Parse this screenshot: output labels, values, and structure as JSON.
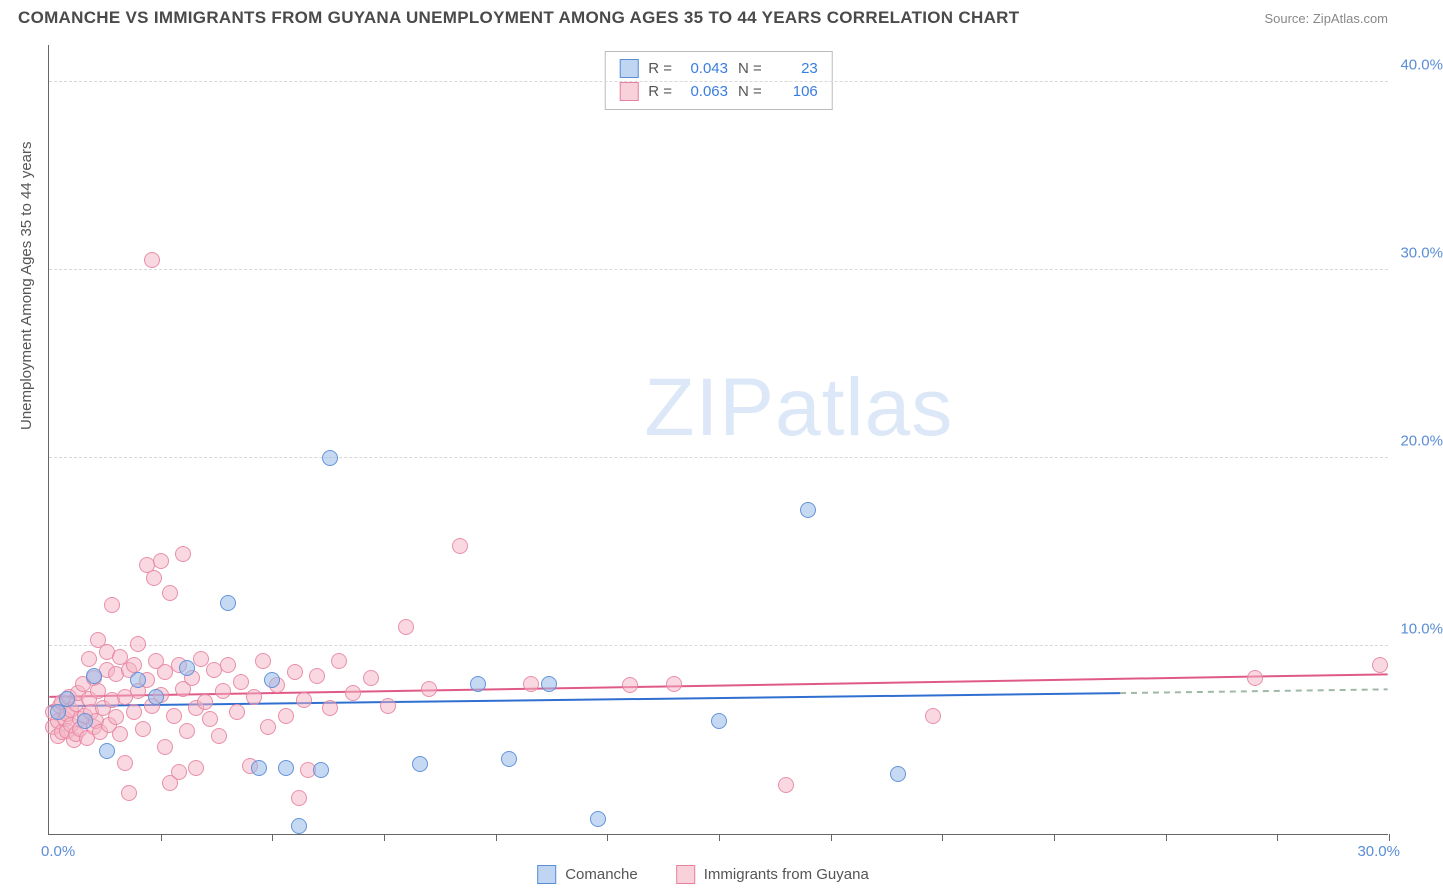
{
  "title": "COMANCHE VS IMMIGRANTS FROM GUYANA UNEMPLOYMENT AMONG AGES 35 TO 44 YEARS CORRELATION CHART",
  "source": "Source: ZipAtlas.com",
  "watermark": "ZIPatlas",
  "ylabel": "Unemployment Among Ages 35 to 44 years",
  "chart": {
    "type": "scatter",
    "background_color": "#ffffff",
    "grid_color": "#d8d8d8",
    "xlim": [
      0,
      30
    ],
    "ylim": [
      0,
      42
    ],
    "xtick_labels": [
      "0.0%",
      "30.0%"
    ],
    "ytick_labels": [
      "10.0%",
      "20.0%",
      "30.0%",
      "40.0%"
    ],
    "ytick_values": [
      10,
      20,
      30,
      40
    ],
    "xtick_marks": [
      2.5,
      5,
      7.5,
      10,
      12.5,
      15,
      17.5,
      20,
      22.5,
      25,
      27.5,
      30
    ],
    "label_color": "#5a8dd6",
    "axis_color": "#666666",
    "marker_size": 16
  },
  "series": {
    "a": {
      "name": "Comanche",
      "color_fill": "rgba(150,185,233,0.55)",
      "color_stroke": "#5a8dd6",
      "r": "0.043",
      "n": "23",
      "trend": {
        "y1": 6.8,
        "y2": 7.5,
        "x2": 24,
        "color": "#2f6fd0",
        "width": 2
      },
      "trend_dash": {
        "x1": 24,
        "y1": 7.5,
        "x2": 30,
        "y2": 7.7,
        "color": "#9fb9a8"
      },
      "points": [
        [
          0.2,
          6.5
        ],
        [
          0.4,
          7.2
        ],
        [
          0.8,
          6.0
        ],
        [
          1.0,
          8.4
        ],
        [
          1.3,
          4.4
        ],
        [
          2.0,
          8.2
        ],
        [
          2.4,
          7.3
        ],
        [
          3.1,
          8.8
        ],
        [
          4.0,
          12.3
        ],
        [
          4.7,
          3.5
        ],
        [
          5.0,
          8.2
        ],
        [
          5.3,
          3.5
        ],
        [
          5.6,
          0.4
        ],
        [
          6.1,
          3.4
        ],
        [
          6.3,
          20.0
        ],
        [
          8.3,
          3.7
        ],
        [
          9.6,
          8.0
        ],
        [
          10.3,
          4.0
        ],
        [
          11.2,
          8.0
        ],
        [
          12.3,
          0.8
        ],
        [
          15.0,
          6.0
        ],
        [
          17.0,
          17.2
        ],
        [
          19.0,
          3.2
        ]
      ]
    },
    "b": {
      "name": "Immigrants from Guyana",
      "color_fill": "rgba(243,178,195,0.5)",
      "color_stroke": "#e682a0",
      "r": "0.063",
      "n": "106",
      "trend": {
        "y1": 7.3,
        "y2": 8.5,
        "x2": 30,
        "color": "#e05a88",
        "width": 2
      },
      "points": [
        [
          0.1,
          5.7
        ],
        [
          0.1,
          6.5
        ],
        [
          0.2,
          5.2
        ],
        [
          0.2,
          6.0
        ],
        [
          0.25,
          6.8
        ],
        [
          0.3,
          5.4
        ],
        [
          0.3,
          7.0
        ],
        [
          0.35,
          6.1
        ],
        [
          0.4,
          5.5
        ],
        [
          0.4,
          6.4
        ],
        [
          0.45,
          7.3
        ],
        [
          0.5,
          5.8
        ],
        [
          0.5,
          6.6
        ],
        [
          0.55,
          5.0
        ],
        [
          0.6,
          6.9
        ],
        [
          0.6,
          5.3
        ],
        [
          0.65,
          7.5
        ],
        [
          0.7,
          6.1
        ],
        [
          0.7,
          5.6
        ],
        [
          0.75,
          8.0
        ],
        [
          0.8,
          6.3
        ],
        [
          0.85,
          5.1
        ],
        [
          0.9,
          7.2
        ],
        [
          0.9,
          9.3
        ],
        [
          0.95,
          6.5
        ],
        [
          1.0,
          5.7
        ],
        [
          1.0,
          8.3
        ],
        [
          1.05,
          6.0
        ],
        [
          1.1,
          7.6
        ],
        [
          1.1,
          10.3
        ],
        [
          1.15,
          5.4
        ],
        [
          1.2,
          6.7
        ],
        [
          1.3,
          8.7
        ],
        [
          1.3,
          9.7
        ],
        [
          1.35,
          5.8
        ],
        [
          1.4,
          7.1
        ],
        [
          1.4,
          12.2
        ],
        [
          1.5,
          6.2
        ],
        [
          1.5,
          8.5
        ],
        [
          1.6,
          9.4
        ],
        [
          1.6,
          5.3
        ],
        [
          1.7,
          7.3
        ],
        [
          1.7,
          3.8
        ],
        [
          1.8,
          8.7
        ],
        [
          1.8,
          2.2
        ],
        [
          1.9,
          6.5
        ],
        [
          1.9,
          9.0
        ],
        [
          2.0,
          10.1
        ],
        [
          2.0,
          7.6
        ],
        [
          2.1,
          5.6
        ],
        [
          2.2,
          8.2
        ],
        [
          2.2,
          14.3
        ],
        [
          2.3,
          6.8
        ],
        [
          2.3,
          30.5
        ],
        [
          2.35,
          13.6
        ],
        [
          2.4,
          9.2
        ],
        [
          2.5,
          7.4
        ],
        [
          2.5,
          14.5
        ],
        [
          2.6,
          4.6
        ],
        [
          2.6,
          8.6
        ],
        [
          2.7,
          12.8
        ],
        [
          2.7,
          2.7
        ],
        [
          2.8,
          6.3
        ],
        [
          2.9,
          9.0
        ],
        [
          2.9,
          3.3
        ],
        [
          3.0,
          7.7
        ],
        [
          3.0,
          14.9
        ],
        [
          3.1,
          5.5
        ],
        [
          3.2,
          8.3
        ],
        [
          3.3,
          6.7
        ],
        [
          3.3,
          3.5
        ],
        [
          3.4,
          9.3
        ],
        [
          3.5,
          7.0
        ],
        [
          3.6,
          6.1
        ],
        [
          3.7,
          8.7
        ],
        [
          3.8,
          5.2
        ],
        [
          3.9,
          7.6
        ],
        [
          4.0,
          9.0
        ],
        [
          4.2,
          6.5
        ],
        [
          4.3,
          8.1
        ],
        [
          4.5,
          3.6
        ],
        [
          4.6,
          7.3
        ],
        [
          4.8,
          9.2
        ],
        [
          4.9,
          5.7
        ],
        [
          5.1,
          7.9
        ],
        [
          5.3,
          6.3
        ],
        [
          5.5,
          8.6
        ],
        [
          5.6,
          1.9
        ],
        [
          5.7,
          7.1
        ],
        [
          5.8,
          3.4
        ],
        [
          6.0,
          8.4
        ],
        [
          6.3,
          6.7
        ],
        [
          6.5,
          9.2
        ],
        [
          6.8,
          7.5
        ],
        [
          7.2,
          8.3
        ],
        [
          7.6,
          6.8
        ],
        [
          8.0,
          11.0
        ],
        [
          8.5,
          7.7
        ],
        [
          9.2,
          15.3
        ],
        [
          10.8,
          8.0
        ],
        [
          13.0,
          7.9
        ],
        [
          14.0,
          8.0
        ],
        [
          16.5,
          2.6
        ],
        [
          19.8,
          6.3
        ],
        [
          27.0,
          8.3
        ],
        [
          29.8,
          9.0
        ]
      ]
    }
  },
  "stats_labels": {
    "r": "R =",
    "n": "N ="
  }
}
